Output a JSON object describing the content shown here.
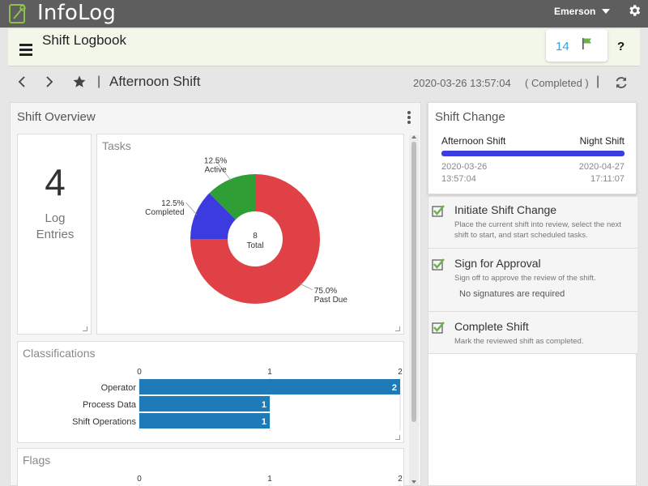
{
  "app": {
    "title": "InfoLog",
    "user": "Emerson",
    "logo_icon": "leaf-pen-icon"
  },
  "module": {
    "title": "Shift Logbook",
    "flag_count": "14",
    "help_label": "?"
  },
  "nav": {
    "separator": "|",
    "shift_name": "Afternoon Shift",
    "datetime": "2020-03-26 13:57:04",
    "status": "( Completed )"
  },
  "overview": {
    "title": "Shift Overview",
    "log_entries": {
      "count": "4",
      "label_line1": "Log",
      "label_line2": "Entries"
    },
    "tasks": {
      "title": "Tasks",
      "total_value": "8",
      "total_label": "Total"
    },
    "classifications": {
      "title": "Classifications"
    },
    "flags": {
      "title": "Flags"
    }
  },
  "shift_change": {
    "title": "Shift Change",
    "from_shift": "Afternoon Shift",
    "to_shift": "Night Shift",
    "from_date": "2020-03-26",
    "from_time": "13:57:04",
    "to_date": "2020-04-27",
    "to_time": "17:11:07",
    "bar_color": "#3a3de0"
  },
  "steps": [
    {
      "title": "Initiate Shift Change",
      "description": "Place the current shift into review, select the next shift to start, and start scheduled tasks.",
      "note": ""
    },
    {
      "title": "Sign for Approval",
      "description": "Sign off to approve the review of the shift.",
      "note": "No signatures are required"
    },
    {
      "title": "Complete Shift",
      "description": "Mark the reviewed shift as completed.",
      "note": ""
    }
  ],
  "chart_data": [
    {
      "type": "pie",
      "title": "Tasks",
      "categories": [
        "Past Due",
        "Completed",
        "Active"
      ],
      "values": [
        75.0,
        12.5,
        12.5
      ],
      "labels": [
        "75.0%",
        "12.5%",
        "12.5%"
      ],
      "colors": [
        "#e04146",
        "#3b3be0",
        "#2e9e35"
      ],
      "center_text": [
        "8",
        "Total"
      ]
    },
    {
      "type": "bar",
      "title": "Classifications",
      "orientation": "horizontal",
      "categories": [
        "Operator",
        "Process Data",
        "Shift Operations"
      ],
      "values": [
        2,
        1,
        1
      ],
      "xlim": [
        0,
        2
      ],
      "ticks": [
        "0",
        "1",
        "2"
      ],
      "color": "#1f7ab8"
    },
    {
      "type": "bar",
      "title": "Flags",
      "orientation": "horizontal",
      "xlim": [
        0,
        2
      ],
      "ticks": [
        "0",
        "1",
        "2"
      ]
    }
  ]
}
